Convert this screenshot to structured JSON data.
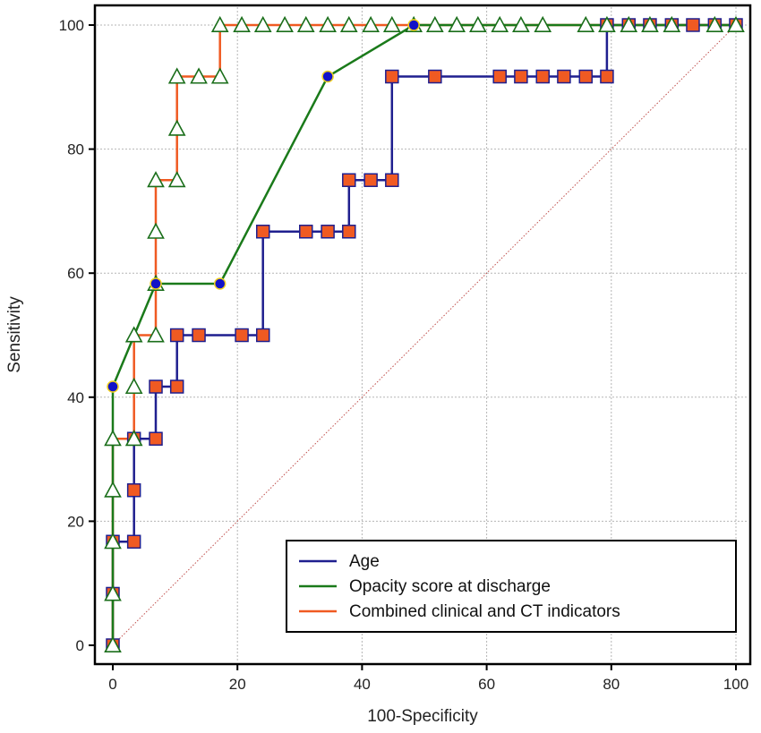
{
  "chart_data": {
    "type": "line",
    "xlabel": "100-Specificity",
    "ylabel": "Sensitivity",
    "xlim": [
      0,
      100
    ],
    "ylim": [
      0,
      100
    ],
    "xticks": [
      0,
      20,
      40,
      60,
      80,
      100
    ],
    "yticks": [
      0,
      20,
      40,
      60,
      80,
      100
    ],
    "grid": true,
    "legend_position": "bottom-right",
    "reference_line": {
      "from": [
        0,
        0
      ],
      "to": [
        100,
        100
      ],
      "color": "#c0504d",
      "style": "dotted"
    },
    "series": [
      {
        "name": "Age",
        "color": "#1f1f8f",
        "marker": "square",
        "marker_fill": "#f05a22",
        "step": true,
        "points": [
          [
            0,
            0
          ],
          [
            0,
            8.3
          ],
          [
            0,
            16.7
          ],
          [
            3.4,
            16.7
          ],
          [
            3.4,
            25
          ],
          [
            3.4,
            33.3
          ],
          [
            6.9,
            33.3
          ],
          [
            6.9,
            41.7
          ],
          [
            10.3,
            41.7
          ],
          [
            10.3,
            50
          ],
          [
            13.8,
            50
          ],
          [
            20.7,
            50
          ],
          [
            24.1,
            50
          ],
          [
            24.1,
            66.7
          ],
          [
            31,
            66.7
          ],
          [
            34.5,
            66.7
          ],
          [
            37.9,
            66.7
          ],
          [
            37.9,
            75
          ],
          [
            41.4,
            75
          ],
          [
            44.8,
            75
          ],
          [
            44.8,
            91.7
          ],
          [
            51.7,
            91.7
          ],
          [
            62.1,
            91.7
          ],
          [
            65.5,
            91.7
          ],
          [
            69,
            91.7
          ],
          [
            72.4,
            91.7
          ],
          [
            75.9,
            91.7
          ],
          [
            79.3,
            91.7
          ],
          [
            79.3,
            100
          ],
          [
            82.8,
            100
          ],
          [
            86.2,
            100
          ],
          [
            89.7,
            100
          ],
          [
            93.1,
            100
          ],
          [
            96.6,
            100
          ],
          [
            100,
            100
          ]
        ]
      },
      {
        "name": "Opacity score at discharge",
        "color": "#1a7a1a",
        "marker": "circle",
        "marker_fill": "#1212c8",
        "step": false,
        "points": [
          [
            0,
            0
          ],
          [
            0,
            41.7
          ],
          [
            6.9,
            58.3
          ],
          [
            17.2,
            58.3
          ],
          [
            34.5,
            91.7
          ],
          [
            48.3,
            100
          ],
          [
            100,
            100
          ]
        ]
      },
      {
        "name": "Combined clinical and CT indicators",
        "color": "#f05a22",
        "marker": "triangle",
        "marker_fill": "#ffffff",
        "step": true,
        "points": [
          [
            0,
            0
          ],
          [
            0,
            8.3
          ],
          [
            0,
            16.7
          ],
          [
            0,
            25
          ],
          [
            0,
            33.3
          ],
          [
            3.4,
            33.3
          ],
          [
            3.4,
            41.7
          ],
          [
            3.4,
            50
          ],
          [
            6.9,
            50
          ],
          [
            6.9,
            58.3
          ],
          [
            6.9,
            66.7
          ],
          [
            6.9,
            75
          ],
          [
            10.3,
            75
          ],
          [
            10.3,
            83.3
          ],
          [
            10.3,
            91.7
          ],
          [
            13.8,
            91.7
          ],
          [
            17.2,
            91.7
          ],
          [
            17.2,
            100
          ],
          [
            20.7,
            100
          ],
          [
            24.1,
            100
          ],
          [
            27.6,
            100
          ],
          [
            31,
            100
          ],
          [
            34.5,
            100
          ],
          [
            37.9,
            100
          ],
          [
            41.4,
            100
          ],
          [
            44.8,
            100
          ],
          [
            48.3,
            100
          ],
          [
            51.7,
            100
          ],
          [
            55.2,
            100
          ],
          [
            58.6,
            100
          ],
          [
            62.1,
            100
          ],
          [
            65.5,
            100
          ],
          [
            69,
            100
          ],
          [
            75.9,
            100
          ],
          [
            79.3,
            100
          ],
          [
            82.8,
            100
          ],
          [
            86.2,
            100
          ],
          [
            89.7,
            100
          ],
          [
            96.6,
            100
          ],
          [
            100,
            100
          ]
        ]
      }
    ]
  }
}
